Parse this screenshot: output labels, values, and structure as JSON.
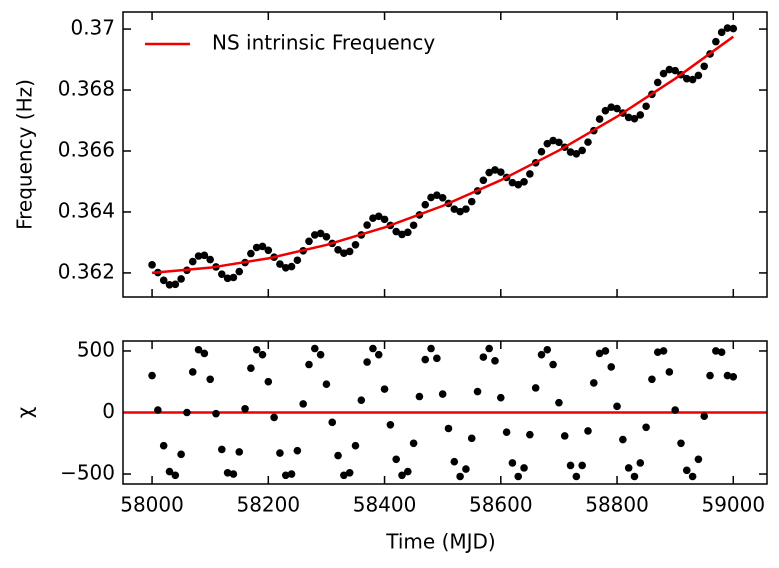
{
  "chart_data": [
    {
      "type": "scatter",
      "ylabel": "Frequency (Hz)",
      "color": "#000000",
      "x": [
        58000,
        58010,
        58020,
        58030,
        58040,
        58050,
        58060,
        58070,
        58080,
        58090,
        58100,
        58110,
        58120,
        58130,
        58140,
        58150,
        58160,
        58170,
        58180,
        58190,
        58200,
        58210,
        58220,
        58230,
        58240,
        58250,
        58260,
        58270,
        58280,
        58290,
        58300,
        58310,
        58320,
        58330,
        58340,
        58350,
        58360,
        58370,
        58380,
        58390,
        58400,
        58410,
        58420,
        58430,
        58440,
        58450,
        58460,
        58470,
        58480,
        58490,
        58500,
        58510,
        58520,
        58530,
        58540,
        58550,
        58560,
        58570,
        58580,
        58590,
        58600,
        58610,
        58620,
        58630,
        58640,
        58650,
        58660,
        58670,
        58680,
        58690,
        58700,
        58710,
        58720,
        58730,
        58740,
        58750,
        58760,
        58770,
        58780,
        58790,
        58800,
        58810,
        58820,
        58830,
        58840,
        58850,
        58860,
        58870,
        58880,
        58890,
        58900,
        58910,
        58920,
        58930,
        58940,
        58950,
        58960,
        58970,
        58980,
        58990,
        59000
      ],
      "values": [
        0.362265,
        0.362011,
        0.361759,
        0.36161,
        0.361625,
        0.361804,
        0.362087,
        0.362371,
        0.362555,
        0.362577,
        0.362437,
        0.362197,
        0.361957,
        0.361822,
        0.36185,
        0.362043,
        0.36234,
        0.362637,
        0.362834,
        0.362869,
        0.362743,
        0.362516,
        0.36229,
        0.362168,
        0.36221,
        0.362416,
        0.362726,
        0.363037,
        0.363247,
        0.363296,
        0.363183,
        0.362969,
        0.362757,
        0.362648,
        0.362704,
        0.362923,
        0.363246,
        0.363571,
        0.363795,
        0.363857,
        0.363757,
        0.363557,
        0.363358,
        0.363262,
        0.363331,
        0.363564,
        0.363901,
        0.364239,
        0.364476,
        0.364551,
        0.364465,
        0.364278,
        0.364093,
        0.364011,
        0.364093,
        0.364339,
        0.364689,
        0.36504,
        0.365291,
        0.36538,
        0.365307,
        0.365134,
        0.364962,
        0.364893,
        0.364988,
        0.365248,
        0.365612,
        0.365976,
        0.36624,
        0.366342,
        0.366283,
        0.366123,
        0.365964,
        0.365909,
        0.366018,
        0.366291,
        0.366668,
        0.367046,
        0.367323,
        0.367439,
        0.367393,
        0.367246,
        0.367101,
        0.367059,
        0.367182,
        0.367468,
        0.367858,
        0.36825,
        0.36854,
        0.36867,
        0.368637,
        0.368504,
        0.368372,
        0.368343,
        0.368479,
        0.368779,
        0.369183,
        0.369588,
        0.369892,
        0.370034,
        0.370015
      ],
      "fit": {
        "name": "NS intrinsic Frequency",
        "color": "#ee0000",
        "x": [
          58000,
          58100,
          58200,
          58300,
          58400,
          58500,
          58600,
          58700,
          58800,
          58900,
          59000
        ],
        "values": [
          0.362,
          0.362172,
          0.362478,
          0.362918,
          0.363492,
          0.3642,
          0.365042,
          0.366018,
          0.367128,
          0.368372,
          0.36975
        ]
      },
      "legend": "upper left",
      "xlim": [
        57950,
        59058
      ],
      "xticks": [
        58000,
        58200,
        58400,
        58600,
        58800,
        59000
      ],
      "ylim": [
        0.36121,
        0.37056
      ],
      "yticks": [
        0.362,
        0.364,
        0.366,
        0.368,
        0.37
      ]
    },
    {
      "type": "scatter",
      "ylabel": "χ",
      "xlabel": "Time (MJD)",
      "color": "#000000",
      "x": [
        58000,
        58010,
        58020,
        58030,
        58040,
        58050,
        58060,
        58070,
        58080,
        58090,
        58100,
        58110,
        58120,
        58130,
        58140,
        58150,
        58160,
        58170,
        58180,
        58190,
        58200,
        58210,
        58220,
        58230,
        58240,
        58250,
        58260,
        58270,
        58280,
        58290,
        58300,
        58310,
        58320,
        58330,
        58340,
        58350,
        58360,
        58370,
        58380,
        58390,
        58400,
        58410,
        58420,
        58430,
        58440,
        58450,
        58460,
        58470,
        58480,
        58490,
        58500,
        58510,
        58520,
        58530,
        58540,
        58550,
        58560,
        58570,
        58580,
        58590,
        58600,
        58610,
        58620,
        58630,
        58640,
        58650,
        58660,
        58670,
        58680,
        58690,
        58700,
        58710,
        58720,
        58730,
        58740,
        58750,
        58760,
        58770,
        58780,
        58790,
        58800,
        58810,
        58820,
        58830,
        58840,
        58850,
        58860,
        58870,
        58880,
        58890,
        58900,
        58910,
        58920,
        58930,
        58940,
        58950,
        58960,
        58970,
        58980,
        58990,
        59000
      ],
      "values": [
        300,
        20,
        -270,
        -480,
        -510,
        -340,
        0,
        330,
        510,
        480,
        270,
        -10,
        -300,
        -490,
        -500,
        -320,
        30,
        360,
        510,
        470,
        250,
        -40,
        -330,
        -510,
        -500,
        -310,
        70,
        390,
        520,
        470,
        230,
        -80,
        -350,
        -510,
        -490,
        -270,
        100,
        410,
        520,
        470,
        190,
        -100,
        -380,
        -510,
        -480,
        -250,
        130,
        430,
        520,
        440,
        150,
        -130,
        -400,
        -520,
        -460,
        -210,
        170,
        450,
        520,
        420,
        120,
        -160,
        -410,
        -520,
        -450,
        -180,
        200,
        470,
        510,
        390,
        80,
        -190,
        -430,
        -520,
        -430,
        -150,
        240,
        480,
        500,
        370,
        50,
        -220,
        -450,
        -520,
        -410,
        -120,
        270,
        490,
        500,
        330,
        20,
        -250,
        -470,
        -520,
        -380,
        -30,
        300,
        500,
        490,
        300,
        290
      ],
      "reference_line": {
        "value": 0,
        "color": "#ee0000"
      },
      "xlim": [
        57950,
        59058
      ],
      "xticks": [
        58000,
        58200,
        58400,
        58600,
        58800,
        59000
      ],
      "ylim": [
        -581,
        581
      ],
      "yticks": [
        {
          "value": -500,
          "label": "−500"
        },
        0,
        500
      ]
    }
  ]
}
